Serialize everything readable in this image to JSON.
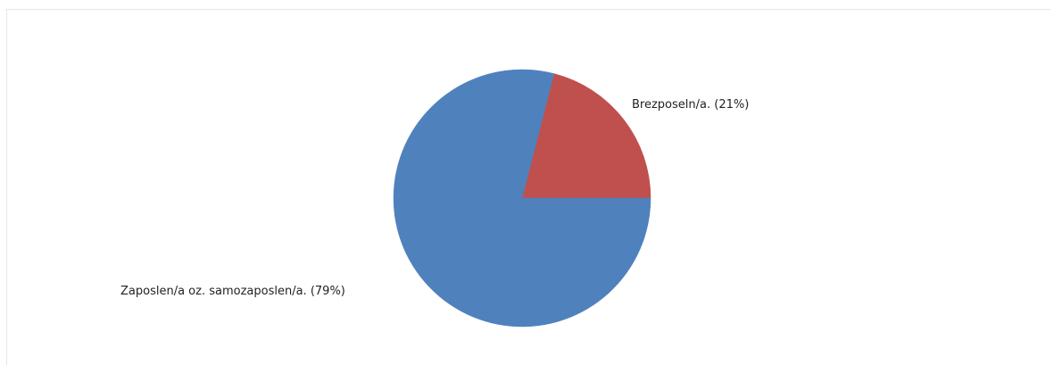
{
  "chart_data": {
    "type": "pie",
    "title": "",
    "series": [
      {
        "values": [
          21,
          79
        ]
      }
    ],
    "categories": [
      "Brezposeln/a.",
      "Zaposlen/a oz. samozaposlen/a."
    ],
    "slices": [
      {
        "label": "Brezposeln/a.",
        "percent_text": "(21%)",
        "value": 21,
        "color": "#c0504d"
      },
      {
        "label": "Zaposlen/a oz. samozaposlen/a.",
        "percent_text": "(79%)",
        "value": 79,
        "color": "#4f81bd"
      }
    ],
    "start_angle_deg": 0,
    "direction": "counterclockwise"
  }
}
